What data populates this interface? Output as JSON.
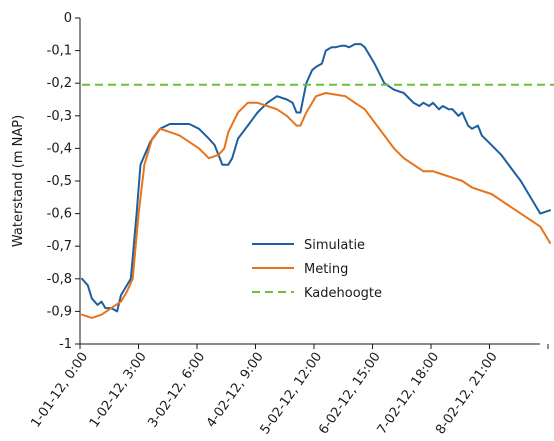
{
  "chart_data": {
    "type": "line",
    "ylabel": "Waterstand (m NAP)",
    "xlabel": "",
    "ylim": [
      -1,
      0
    ],
    "yticks": [
      0,
      -0.1,
      -0.2,
      -0.3,
      -0.4,
      -0.5,
      -0.6,
      -0.7,
      -0.8,
      -0.9,
      -1
    ],
    "ytick_labels": [
      "0",
      "-0,1",
      "-0,2",
      "-0,3",
      "-0,4",
      "-0,5",
      "-0,6",
      "-0,7",
      "-0,8",
      "-0,9",
      "-1"
    ],
    "xlim": [
      0,
      24
    ],
    "xticks": [
      0,
      3,
      6,
      9,
      12,
      15,
      18,
      21
    ],
    "xtick_labels": [
      "1-01-12, 0:00",
      "1-02-12, 3:00",
      "3-02-12, 6:00",
      "4-02-12, 9:00",
      "5-02-12, 12:00",
      "6-02-12, 15:00",
      "7-02-12, 18:00",
      "8-02-12, 21:00"
    ],
    "x_unit": "hours",
    "grid": false,
    "legend_position": "center",
    "series": [
      {
        "name": "Simulatie",
        "color": "#1f5fa0",
        "style": "solid",
        "points": [
          [
            0,
            -0.8
          ],
          [
            0.3,
            -0.82
          ],
          [
            0.5,
            -0.86
          ],
          [
            0.8,
            -0.88
          ],
          [
            1.0,
            -0.87
          ],
          [
            1.2,
            -0.89
          ],
          [
            1.5,
            -0.89
          ],
          [
            1.8,
            -0.9
          ],
          [
            2.0,
            -0.85
          ],
          [
            2.2,
            -0.83
          ],
          [
            2.5,
            -0.8
          ],
          [
            2.8,
            -0.6
          ],
          [
            3.0,
            -0.45
          ],
          [
            3.5,
            -0.38
          ],
          [
            4.0,
            -0.34
          ],
          [
            4.5,
            -0.325
          ],
          [
            5.0,
            -0.325
          ],
          [
            5.5,
            -0.325
          ],
          [
            6.0,
            -0.34
          ],
          [
            6.5,
            -0.37
          ],
          [
            6.8,
            -0.39
          ],
          [
            7.0,
            -0.42
          ],
          [
            7.2,
            -0.45
          ],
          [
            7.5,
            -0.45
          ],
          [
            7.7,
            -0.43
          ],
          [
            8.0,
            -0.37
          ],
          [
            8.5,
            -0.33
          ],
          [
            9.0,
            -0.29
          ],
          [
            9.5,
            -0.26
          ],
          [
            10.0,
            -0.24
          ],
          [
            10.5,
            -0.25
          ],
          [
            10.8,
            -0.26
          ],
          [
            11.0,
            -0.29
          ],
          [
            11.2,
            -0.29
          ],
          [
            11.5,
            -0.2
          ],
          [
            11.8,
            -0.16
          ],
          [
            12.0,
            -0.15
          ],
          [
            12.3,
            -0.14
          ],
          [
            12.5,
            -0.1
          ],
          [
            12.8,
            -0.09
          ],
          [
            13.0,
            -0.09
          ],
          [
            13.3,
            -0.085
          ],
          [
            13.5,
            -0.085
          ],
          [
            13.7,
            -0.09
          ],
          [
            14.0,
            -0.08
          ],
          [
            14.3,
            -0.08
          ],
          [
            14.5,
            -0.09
          ],
          [
            15.0,
            -0.14
          ],
          [
            15.5,
            -0.2
          ],
          [
            16.0,
            -0.22
          ],
          [
            16.5,
            -0.23
          ],
          [
            17.0,
            -0.26
          ],
          [
            17.3,
            -0.27
          ],
          [
            17.5,
            -0.26
          ],
          [
            17.8,
            -0.27
          ],
          [
            18.0,
            -0.26
          ],
          [
            18.3,
            -0.28
          ],
          [
            18.5,
            -0.27
          ],
          [
            18.8,
            -0.28
          ],
          [
            19.0,
            -0.28
          ],
          [
            19.3,
            -0.3
          ],
          [
            19.5,
            -0.29
          ],
          [
            19.8,
            -0.33
          ],
          [
            20.0,
            -0.34
          ],
          [
            20.3,
            -0.33
          ],
          [
            20.5,
            -0.36
          ],
          [
            21.0,
            -0.39
          ],
          [
            21.5,
            -0.42
          ],
          [
            22.0,
            -0.46
          ],
          [
            22.5,
            -0.5
          ],
          [
            23.0,
            -0.55
          ],
          [
            23.5,
            -0.6
          ],
          [
            24.0,
            -0.59
          ]
        ]
      },
      {
        "name": "Meting",
        "color": "#e8731a",
        "style": "solid",
        "points": [
          [
            0,
            -0.91
          ],
          [
            0.5,
            -0.92
          ],
          [
            1.0,
            -0.91
          ],
          [
            1.5,
            -0.89
          ],
          [
            2.0,
            -0.87
          ],
          [
            2.3,
            -0.84
          ],
          [
            2.6,
            -0.8
          ],
          [
            2.9,
            -0.6
          ],
          [
            3.2,
            -0.45
          ],
          [
            3.6,
            -0.37
          ],
          [
            4.0,
            -0.34
          ],
          [
            4.5,
            -0.35
          ],
          [
            5.0,
            -0.36
          ],
          [
            5.5,
            -0.38
          ],
          [
            6.0,
            -0.4
          ],
          [
            6.5,
            -0.43
          ],
          [
            7.0,
            -0.42
          ],
          [
            7.3,
            -0.4
          ],
          [
            7.5,
            -0.35
          ],
          [
            8.0,
            -0.29
          ],
          [
            8.5,
            -0.26
          ],
          [
            9.0,
            -0.26
          ],
          [
            9.5,
            -0.27
          ],
          [
            10.0,
            -0.28
          ],
          [
            10.5,
            -0.3
          ],
          [
            11.0,
            -0.33
          ],
          [
            11.2,
            -0.33
          ],
          [
            11.5,
            -0.29
          ],
          [
            12.0,
            -0.24
          ],
          [
            12.5,
            -0.23
          ],
          [
            13.0,
            -0.235
          ],
          [
            13.5,
            -0.24
          ],
          [
            14.0,
            -0.26
          ],
          [
            14.5,
            -0.28
          ],
          [
            15.0,
            -0.32
          ],
          [
            15.5,
            -0.36
          ],
          [
            16.0,
            -0.4
          ],
          [
            16.5,
            -0.43
          ],
          [
            17.0,
            -0.45
          ],
          [
            17.5,
            -0.47
          ],
          [
            18.0,
            -0.47
          ],
          [
            18.5,
            -0.48
          ],
          [
            19.0,
            -0.49
          ],
          [
            19.5,
            -0.5
          ],
          [
            20.0,
            -0.52
          ],
          [
            20.5,
            -0.53
          ],
          [
            21.0,
            -0.54
          ],
          [
            21.5,
            -0.56
          ],
          [
            22.0,
            -0.58
          ],
          [
            22.5,
            -0.6
          ],
          [
            23.0,
            -0.62
          ],
          [
            23.5,
            -0.64
          ],
          [
            24.0,
            -0.69
          ]
        ]
      },
      {
        "name": "Kadehoogte",
        "color": "#6bbf3a",
        "style": "dashed",
        "points": [
          [
            0,
            -0.205
          ],
          [
            26.5,
            -0.205
          ]
        ]
      }
    ]
  }
}
